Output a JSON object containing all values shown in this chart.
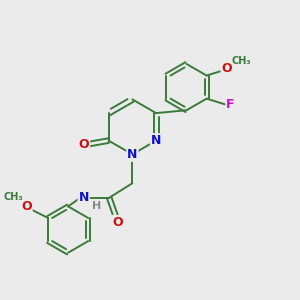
{
  "background_color": "#ebebeb",
  "bond_color": "#3a7a3a",
  "atom_colors": {
    "N": "#1010cc",
    "O": "#cc1010",
    "F": "#cc10cc",
    "H": "#888888",
    "C": "#3a7a3a"
  },
  "figsize": [
    3.0,
    3.0
  ],
  "dpi": 100,
  "xlim": [
    0,
    10
  ],
  "ylim": [
    0,
    10
  ]
}
